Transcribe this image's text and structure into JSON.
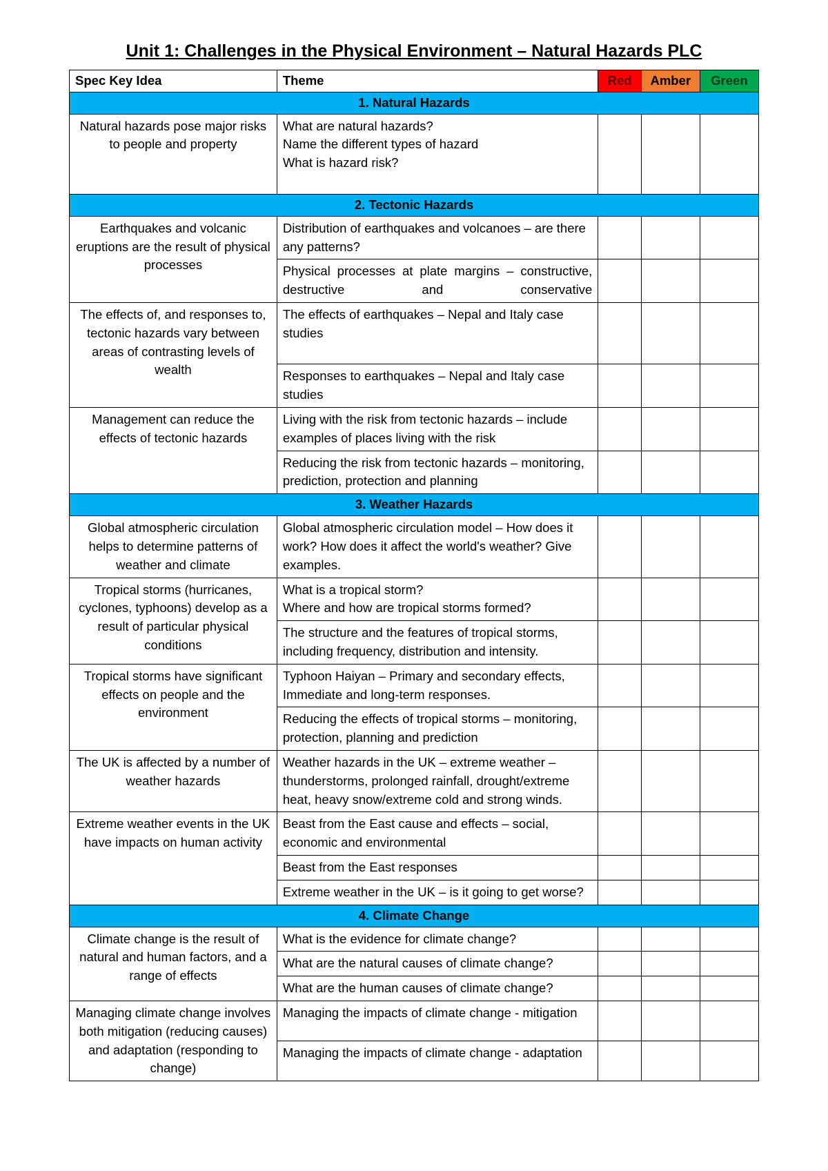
{
  "title": "Unit 1: Challenges in the Physical Environment – Natural Hazards PLC",
  "columns": {
    "key": "Spec Key Idea",
    "theme": "Theme",
    "red": "Red",
    "amber": "Amber",
    "green": "Green"
  },
  "colors": {
    "section_bg": "#00b0f0",
    "red_bg": "#ff0000",
    "amber_bg": "#ed7d31",
    "green_bg": "#00a650"
  },
  "sections": [
    {
      "heading": "1. Natural Hazards",
      "rows": [
        {
          "key": "Natural hazards pose major risks to people and property",
          "themes": [
            "What are natural hazards?\nName the different types of hazard\nWhat is hazard risk?"
          ]
        }
      ]
    },
    {
      "heading": "2. Tectonic Hazards",
      "rows": [
        {
          "key": "Earthquakes and volcanic eruptions are the result of physical processes",
          "themes": [
            "Distribution of earthquakes and volcanoes – are there any patterns?",
            "Physical processes at plate margins – constructive, destructive and conservative"
          ],
          "themeJustify": [
            false,
            true
          ]
        },
        {
          "key": "The effects of, and responses to, tectonic hazards vary between areas of contrasting levels of wealth",
          "themes": [
            "The effects of earthquakes – Nepal and Italy case studies",
            "Responses to earthquakes – Nepal and Italy case studies"
          ]
        },
        {
          "key": "Management can reduce the effects of tectonic hazards",
          "themes": [
            "Living with the risk from tectonic hazards – include examples of places living with the risk",
            "Reducing the risk from tectonic hazards – monitoring, prediction, protection and planning"
          ]
        }
      ]
    },
    {
      "heading": "3. Weather Hazards",
      "rows": [
        {
          "key": "Global atmospheric circulation helps to determine patterns of weather and climate",
          "themes": [
            "Global atmospheric circulation model – How does it work? How does it affect the world's weather? Give examples."
          ]
        },
        {
          "key": "Tropical storms (hurricanes, cyclones, typhoons) develop as a result of particular physical conditions",
          "themes": [
            "What is a tropical storm?\nWhere and how are tropical storms formed?",
            "The structure and the features of tropical storms, including frequency, distribution and intensity."
          ]
        },
        {
          "key": "Tropical storms have significant effects on people and the environment",
          "themes": [
            "Typhoon Haiyan – Primary and secondary effects, Immediate and long-term responses.",
            "Reducing the effects of tropical storms – monitoring, protection, planning and prediction"
          ]
        },
        {
          "key": "The UK is affected by a number of weather hazards",
          "themes": [
            "Weather hazards in the UK – extreme weather – thunderstorms, prolonged rainfall, drought/extreme heat, heavy snow/extreme cold and strong winds."
          ]
        },
        {
          "key": "Extreme weather events in the UK have impacts on human activity",
          "themes": [
            "Beast from the East cause and effects – social, economic and environmental",
            "Beast from the East responses",
            "Extreme weather in the UK – is it going to get worse?"
          ]
        }
      ]
    },
    {
      "heading": "4. Climate Change",
      "rows": [
        {
          "key": "Climate change is the result of natural and human factors, and a range of effects",
          "themes": [
            "What is the evidence for climate change?",
            "What are the natural causes of climate change?",
            "What are the human causes of climate change?"
          ]
        },
        {
          "key": "Managing climate change involves both mitigation (reducing causes) and adaptation (responding to change)",
          "themes": [
            "Managing the impacts of climate change - mitigation",
            "Managing the impacts of climate change - adaptation"
          ]
        }
      ]
    }
  ]
}
